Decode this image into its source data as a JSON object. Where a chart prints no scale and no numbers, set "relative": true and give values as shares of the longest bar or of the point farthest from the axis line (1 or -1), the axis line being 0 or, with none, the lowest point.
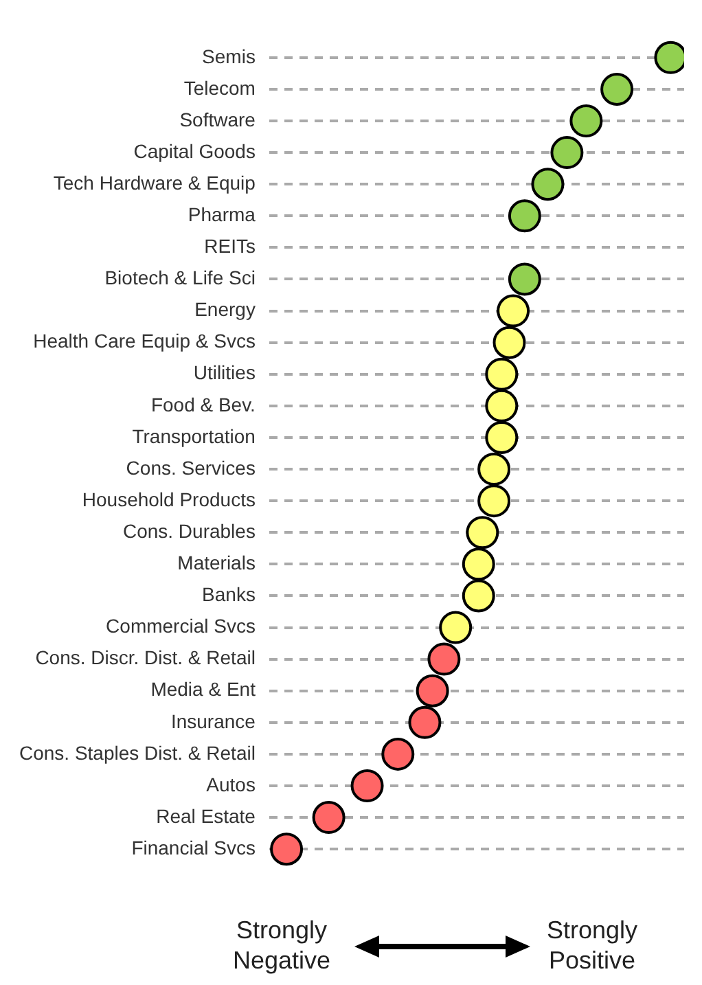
{
  "chart_data": {
    "type": "scatter",
    "orientation": "horizontal",
    "relative": true,
    "grid": "y",
    "legend": false,
    "marker": "circle",
    "categories": [
      "Semis",
      "Telecom",
      "Software",
      "Capital Goods",
      "Tech Hardware & Equip",
      "Pharma",
      "REITs",
      "Biotech & Life Sci",
      "Energy",
      "Health Care Equip & Svcs",
      "Utilities",
      "Food & Bev.",
      "Transportation",
      "Cons. Services",
      "Household Products",
      "Cons. Durables",
      "Materials",
      "Banks",
      "Commercial Svcs",
      "Cons. Discr. Dist. & Retail",
      "Media & Ent",
      "Insurance",
      "Cons. Staples Dist. & Retail",
      "Autos",
      "Real Estate",
      "Financial Svcs"
    ],
    "values": [
      1,
      0.86,
      0.78,
      0.73,
      0.68,
      0.62,
      null,
      0.62,
      0.59,
      0.58,
      0.56,
      0.56,
      0.56,
      0.54,
      0.54,
      0.51,
      0.5,
      0.5,
      0.44,
      0.41,
      0.38,
      0.36,
      0.29,
      0.21,
      0.11,
      0
    ],
    "colors": [
      "#92d050",
      "#92d050",
      "#92d050",
      "#92d050",
      "#92d050",
      "#92d050",
      "#92d050",
      "#92d050",
      "#ffff77",
      "#ffff77",
      "#ffff77",
      "#ffff77",
      "#ffff77",
      "#ffff77",
      "#ffff77",
      "#ffff77",
      "#ffff77",
      "#ffff77",
      "#ffff77",
      "#ff6666",
      "#ff6666",
      "#ff6666",
      "#ff6666",
      "#ff6666",
      "#ff6666",
      "#ff6666"
    ],
    "annotations": [
      "Strongly Negative",
      "Strongly Positive"
    ]
  }
}
